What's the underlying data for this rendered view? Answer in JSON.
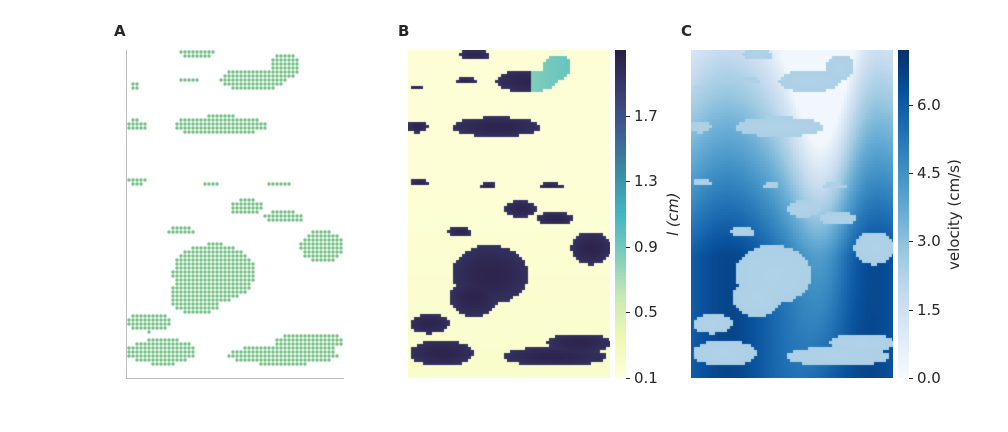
{
  "panels": {
    "a": {
      "label": "A"
    },
    "b": {
      "label": "B"
    },
    "c": {
      "label": "C"
    }
  },
  "chart_data": [
    {
      "type": "scatter",
      "panel": "A",
      "description_of_marks": "binary mask of patches (dots where patch present)",
      "dot_color": "#6dbb7f",
      "axes": {
        "left_spine": true,
        "bottom_spine": true,
        "ticks": false
      },
      "patches": [
        {
          "cx": 0.32,
          "cy": 0.01,
          "rx": 0.08,
          "ry": 0.015
        },
        {
          "cx": 0.73,
          "cy": 0.05,
          "rx": 0.07,
          "ry": 0.04
        },
        {
          "cx": 0.58,
          "cy": 0.09,
          "rx": 0.15,
          "ry": 0.035
        },
        {
          "cx": 0.28,
          "cy": 0.09,
          "rx": 0.05,
          "ry": 0.01
        },
        {
          "cx": 0.03,
          "cy": 0.11,
          "rx": 0.03,
          "ry": 0.008
        },
        {
          "cx": 0.04,
          "cy": 0.23,
          "rx": 0.05,
          "ry": 0.018
        },
        {
          "cx": 0.43,
          "cy": 0.23,
          "rx": 0.22,
          "ry": 0.03
        },
        {
          "cx": 0.05,
          "cy": 0.4,
          "rx": 0.05,
          "ry": 0.01
        },
        {
          "cx": 0.39,
          "cy": 0.41,
          "rx": 0.04,
          "ry": 0.01
        },
        {
          "cx": 0.7,
          "cy": 0.41,
          "rx": 0.06,
          "ry": 0.01
        },
        {
          "cx": 0.55,
          "cy": 0.48,
          "rx": 0.08,
          "ry": 0.025
        },
        {
          "cx": 0.72,
          "cy": 0.51,
          "rx": 0.09,
          "ry": 0.02
        },
        {
          "cx": 0.25,
          "cy": 0.55,
          "rx": 0.06,
          "ry": 0.015
        },
        {
          "cx": 0.9,
          "cy": 0.6,
          "rx": 0.1,
          "ry": 0.05
        },
        {
          "cx": 0.4,
          "cy": 0.68,
          "rx": 0.19,
          "ry": 0.09
        },
        {
          "cx": 0.32,
          "cy": 0.75,
          "rx": 0.12,
          "ry": 0.06
        },
        {
          "cx": 0.1,
          "cy": 0.83,
          "rx": 0.1,
          "ry": 0.03
        },
        {
          "cx": 0.16,
          "cy": 0.92,
          "rx": 0.16,
          "ry": 0.04
        },
        {
          "cx": 0.72,
          "cy": 0.93,
          "rx": 0.26,
          "ry": 0.03
        },
        {
          "cx": 0.84,
          "cy": 0.89,
          "rx": 0.16,
          "ry": 0.03
        }
      ]
    },
    {
      "type": "heatmap",
      "panel": "B",
      "colorbar": {
        "label": "l (cm)",
        "ticks": [
          "0.1",
          "0.5",
          "0.9",
          "1.3",
          "1.7"
        ],
        "tick_values": [
          0.1,
          0.5,
          0.9,
          1.3,
          1.7
        ],
        "range": [
          0.1,
          2.1
        ],
        "colormap": [
          "#ffffd9",
          "#edf8b1",
          "#c7e9b4",
          "#7fcdbb",
          "#41b6c4",
          "#3b8ea5",
          "#3e5f93",
          "#3b3d72",
          "#2a1f45"
        ]
      }
    },
    {
      "type": "heatmap",
      "panel": "C",
      "colorbar": {
        "label": "velocity (cm/s)",
        "ticks": [
          "0.0",
          "1.5",
          "3.0",
          "4.5",
          "6.0"
        ],
        "tick_values": [
          0.0,
          1.5,
          3.0,
          4.5,
          6.0
        ],
        "range": [
          0.0,
          7.2
        ],
        "colormap": [
          "#f7fbff",
          "#deebf7",
          "#c6dbef",
          "#9ecae1",
          "#6baed6",
          "#4292c6",
          "#2171b5",
          "#08519c",
          "#08306b"
        ]
      }
    }
  ]
}
